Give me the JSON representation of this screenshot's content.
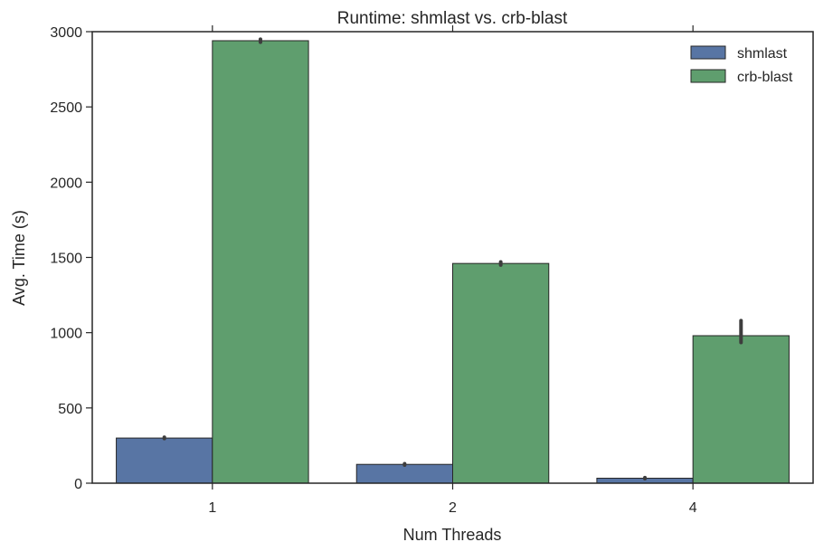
{
  "chart_data": {
    "type": "bar",
    "title": "Runtime: shmlast vs. crb-blast",
    "xlabel": "Num Threads",
    "ylabel": "Avg. Time (s)",
    "categories": [
      "1",
      "2",
      "4"
    ],
    "ylim": [
      0,
      3000
    ],
    "yticks": [
      "0",
      "500",
      "1000",
      "1500",
      "2000",
      "2500",
      "3000"
    ],
    "grid": false,
    "legend_position": "top-right",
    "series": [
      {
        "name": "shmlast",
        "color": "#5875a4",
        "values": [
          300,
          125,
          33
        ],
        "error_low": [
          297,
          120,
          30
        ],
        "error_high": [
          305,
          129,
          37
        ]
      },
      {
        "name": "crb-blast",
        "color": "#5f9e6e",
        "values": [
          2940,
          1460,
          980
        ],
        "error_low": [
          2930,
          1450,
          935
        ],
        "error_high": [
          2950,
          1470,
          1080
        ]
      }
    ]
  }
}
